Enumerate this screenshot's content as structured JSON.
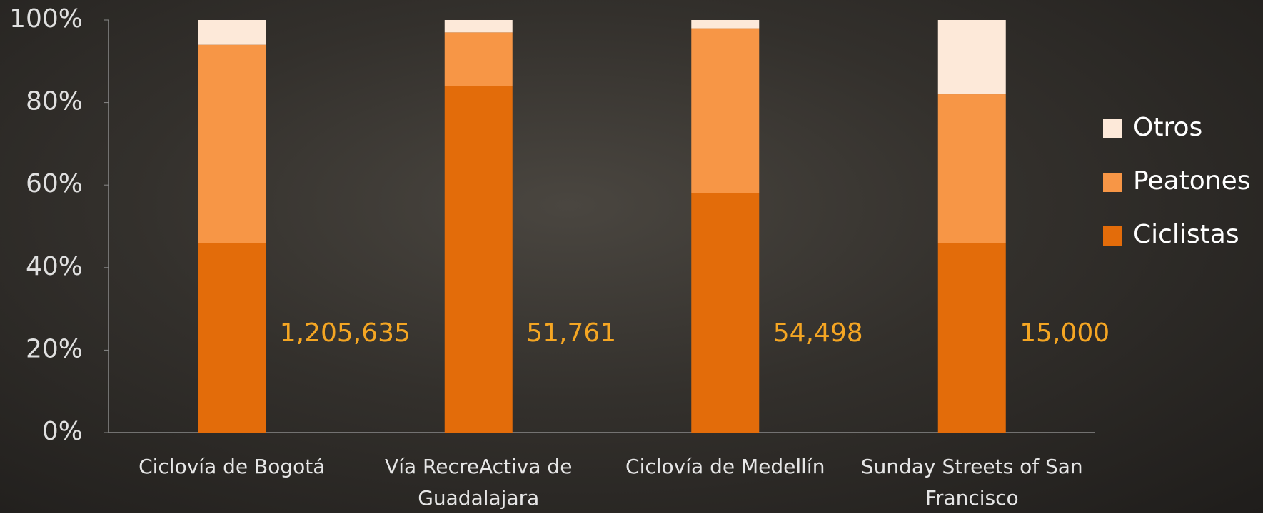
{
  "chart_data": {
    "type": "stacked_bar_100",
    "categories": [
      "Ciclovía de Bogotá",
      "Vía RecreActiva de Guadalajara",
      "Ciclovía de Medellín",
      "Sunday Streets of San Francisco"
    ],
    "series": [
      {
        "name": "Ciclistas",
        "color": "#e36c0a",
        "values": [
          46,
          84,
          58,
          46
        ]
      },
      {
        "name": "Peatones",
        "color": "#f79646",
        "values": [
          48,
          13,
          40,
          36
        ]
      },
      {
        "name": "Otros",
        "color": "#fde9d9",
        "values": [
          6,
          3,
          2,
          18
        ]
      }
    ],
    "annotations": [
      "1,205,635",
      "51,761",
      "54,498",
      "15,000"
    ],
    "ylim": [
      0,
      100
    ],
    "yticks": [
      {
        "value": 0,
        "label": "0%"
      },
      {
        "value": 20,
        "label": "20%"
      },
      {
        "value": 40,
        "label": "40%"
      },
      {
        "value": 60,
        "label": "60%"
      },
      {
        "value": 80,
        "label": "80%"
      },
      {
        "value": 100,
        "label": "100%"
      }
    ],
    "grid": false,
    "legend": "right"
  }
}
